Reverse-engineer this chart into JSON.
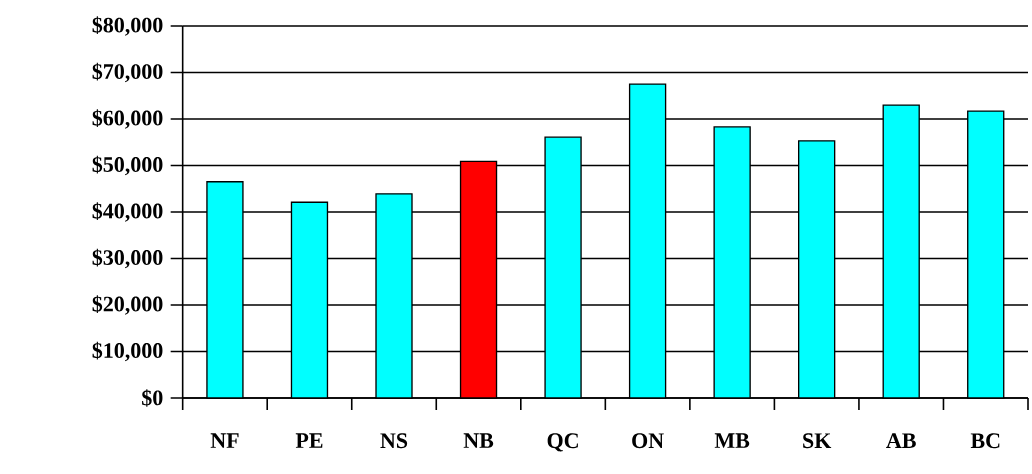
{
  "chart_data": {
    "type": "bar",
    "categories": [
      "NF",
      "PE",
      "NS",
      "NB",
      "QC",
      "ON",
      "MB",
      "SK",
      "AB",
      "BC"
    ],
    "values": [
      46500,
      42100,
      43900,
      50900,
      56100,
      67500,
      58300,
      55300,
      63000,
      61700
    ],
    "colors": [
      "#00ffff",
      "#00ffff",
      "#00ffff",
      "#ff0000",
      "#00ffff",
      "#00ffff",
      "#00ffff",
      "#00ffff",
      "#00ffff",
      "#00ffff"
    ],
    "ylim": [
      0,
      80000
    ],
    "yticks": [
      {
        "value": 0,
        "label": "$0"
      },
      {
        "value": 10000,
        "label": "$10,000"
      },
      {
        "value": 20000,
        "label": "$20,000"
      },
      {
        "value": 30000,
        "label": "$30,000"
      },
      {
        "value": 40000,
        "label": "$40,000"
      },
      {
        "value": 50000,
        "label": "$50,000"
      },
      {
        "value": 60000,
        "label": "$60,000"
      },
      {
        "value": 70000,
        "label": "$70,000"
      },
      {
        "value": 80000,
        "label": "$80,000"
      }
    ],
    "grid": "y"
  }
}
